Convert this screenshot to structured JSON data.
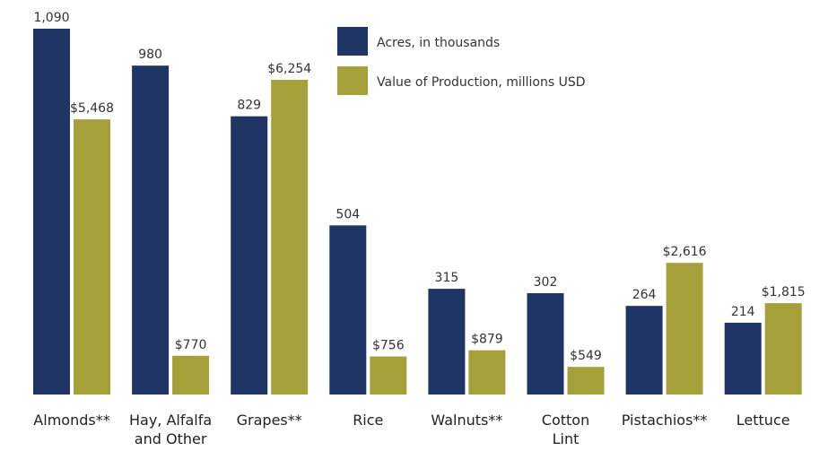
{
  "chart_data": {
    "type": "bar",
    "categories": [
      "Almonds**",
      "Hay, Alfalfa\nand Other",
      "Grapes**",
      "Rice",
      "Walnuts**",
      "Cotton\nLint",
      "Pistachios**",
      "Lettuce"
    ],
    "series": [
      {
        "name": "Acres, in thousands",
        "color": "#1f3566",
        "values": [
          1090,
          980,
          829,
          504,
          315,
          302,
          264,
          214
        ],
        "value_labels": [
          "1,090",
          "980",
          "829",
          "504",
          "315",
          "302",
          "264",
          "214"
        ]
      },
      {
        "name": "Value of Production, millions USD",
        "color": "#a5a03a",
        "axis": "y2",
        "values": [
          5468,
          770,
          6254,
          756,
          879,
          549,
          2616,
          1815
        ],
        "value_labels": [
          "$5,468",
          "$770",
          "$6,254",
          "$756",
          "$879",
          "$549",
          "$2,616",
          "$1,815"
        ]
      }
    ],
    "ylim": [
      0,
      1090
    ],
    "y2lim": [
      0,
      7270
    ]
  }
}
